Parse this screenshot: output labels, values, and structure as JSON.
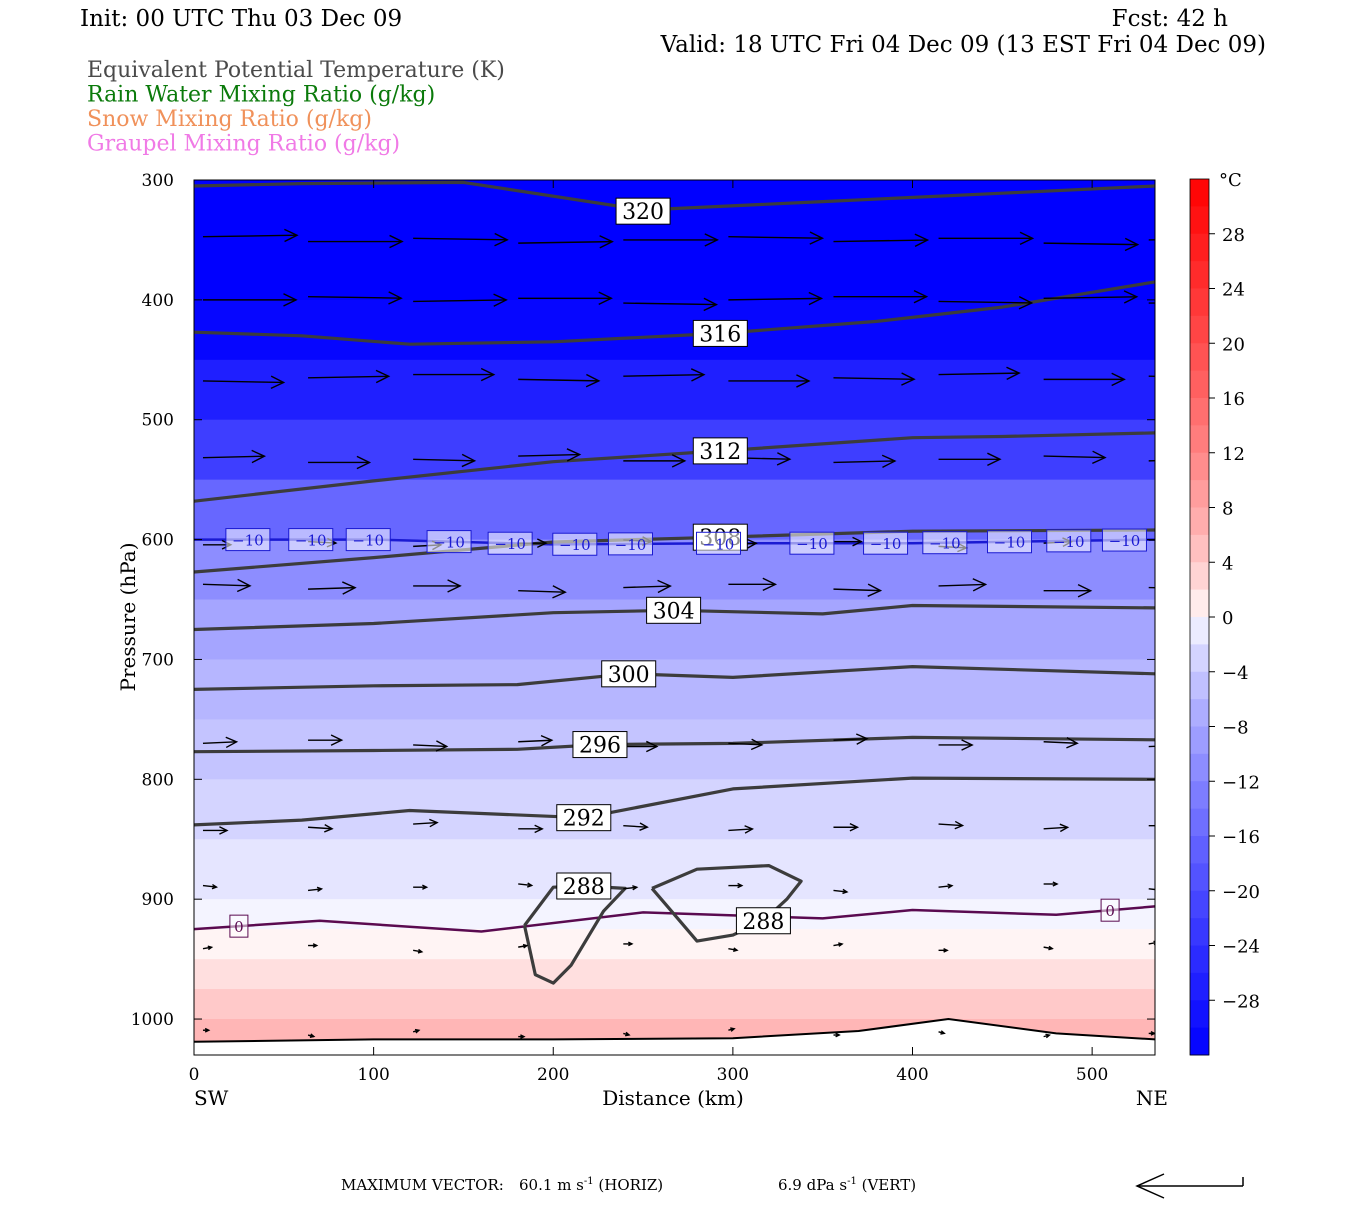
{
  "header": {
    "init": "Init: 00 UTC Thu 03 Dec 09",
    "fcst": "Fcst:   42 h",
    "valid": "Valid: 18 UTC Fri 04 Dec 09 (13 EST Fri 04 Dec 09)"
  },
  "legend": [
    {
      "label": "Equivalent Potential Temperature (K)",
      "color": "#4a4a4a"
    },
    {
      "label": "Rain Water Mixing Ratio (g/kg)",
      "color": "#0a7a0a"
    },
    {
      "label": "Snow Mixing Ratio (g/kg)",
      "color": "#f0915a"
    },
    {
      "label": "Graupel Mixing Ratio (g/kg)",
      "color": "#f07ae6"
    }
  ],
  "footer": {
    "prefix": "MAXIMUM VECTOR:",
    "horiz_value": "60.1",
    "horiz_unit": "m s",
    "horiz_exp": "-1",
    "horiz_tag": "(HORIZ)",
    "vert_value": "6.9",
    "vert_unit": "dPa s",
    "vert_exp": "-1",
    "vert_tag": "(VERT)"
  },
  "chart_data": {
    "type": "contour cross-section",
    "xlabel": "Distance (km)",
    "ylabel": "Pressure (hPa)",
    "x_left_label": "SW",
    "x_right_label": "NE",
    "xlim": [
      0,
      535
    ],
    "ylim": [
      1030,
      300
    ],
    "x_ticks": [
      0,
      100,
      200,
      300,
      400,
      500
    ],
    "y_ticks": [
      300,
      400,
      500,
      600,
      700,
      800,
      900,
      1000
    ],
    "colorbar": {
      "unit": "°C",
      "tick_labels": [
        "28",
        "24",
        "20",
        "16",
        "12",
        "8",
        "4",
        "0",
        "−4",
        "−8",
        "−12",
        "−16",
        "−20",
        "−24",
        "−28"
      ],
      "range": [
        -32,
        32
      ],
      "step": 2,
      "cold_color": "#0000ff",
      "neutral_color": "#ffffff",
      "warm_color": "#ff0000"
    },
    "temperature_bands": [
      {
        "p": 300,
        "t": -32
      },
      {
        "p": 350,
        "t": -32
      },
      {
        "p": 400,
        "t": -31
      },
      {
        "p": 450,
        "t": -27
      },
      {
        "p": 500,
        "t": -22
      },
      {
        "p": 550,
        "t": -16
      },
      {
        "p": 600,
        "t": -11
      },
      {
        "p": 650,
        "t": -8
      },
      {
        "p": 700,
        "t": -6
      },
      {
        "p": 750,
        "t": -4.5
      },
      {
        "p": 800,
        "t": -3
      },
      {
        "p": 850,
        "t": -1.5
      },
      {
        "p": 900,
        "t": -0.5
      },
      {
        "p": 925,
        "t": 0.5
      },
      {
        "p": 950,
        "t": 2
      },
      {
        "p": 975,
        "t": 4
      },
      {
        "p": 1000,
        "t": 6
      },
      {
        "p": 1030,
        "t": 8
      }
    ],
    "theta_e_contours": [
      {
        "label": "320",
        "label_at": [
          250,
          326
        ],
        "points": [
          [
            0,
            305
          ],
          [
            60,
            303
          ],
          [
            150,
            302
          ],
          [
            250,
            325
          ],
          [
            350,
            318
          ],
          [
            450,
            311
          ],
          [
            535,
            305
          ]
        ]
      },
      {
        "label": "316",
        "label_at": [
          293,
          428
        ],
        "points": [
          [
            0,
            427
          ],
          [
            60,
            430
          ],
          [
            120,
            437
          ],
          [
            200,
            435
          ],
          [
            293,
            428
          ],
          [
            380,
            418
          ],
          [
            450,
            406
          ],
          [
            535,
            385
          ]
        ]
      },
      {
        "label": "312",
        "label_at": [
          293,
          526
        ],
        "points": [
          [
            0,
            568
          ],
          [
            100,
            551
          ],
          [
            200,
            535
          ],
          [
            293,
            526
          ],
          [
            400,
            515
          ],
          [
            450,
            514
          ],
          [
            535,
            511
          ]
        ]
      },
      {
        "label": "308",
        "label_at": [
          293,
          598
        ],
        "points": [
          [
            0,
            627
          ],
          [
            100,
            615
          ],
          [
            200,
            602
          ],
          [
            293,
            598
          ],
          [
            400,
            593
          ],
          [
            535,
            592
          ]
        ]
      },
      {
        "label": "304",
        "label_at": [
          267,
          659
        ],
        "points": [
          [
            0,
            675
          ],
          [
            100,
            670
          ],
          [
            200,
            661
          ],
          [
            267,
            659
          ],
          [
            350,
            662
          ],
          [
            400,
            655
          ],
          [
            535,
            657
          ]
        ]
      },
      {
        "label": "300",
        "label_at": [
          242,
          712
        ],
        "points": [
          [
            0,
            725
          ],
          [
            100,
            722
          ],
          [
            180,
            721
          ],
          [
            242,
            712
          ],
          [
            300,
            715
          ],
          [
            400,
            706
          ],
          [
            535,
            712
          ]
        ]
      },
      {
        "label": "296",
        "label_at": [
          226,
          771
        ],
        "points": [
          [
            0,
            777
          ],
          [
            100,
            776
          ],
          [
            180,
            775
          ],
          [
            226,
            771
          ],
          [
            300,
            770
          ],
          [
            400,
            765
          ],
          [
            535,
            767
          ]
        ]
      },
      {
        "label": "292",
        "label_at": [
          217,
          832
        ],
        "points": [
          [
            0,
            838
          ],
          [
            60,
            834
          ],
          [
            120,
            826
          ],
          [
            217,
            832
          ],
          [
            300,
            808
          ],
          [
            400,
            799
          ],
          [
            535,
            800
          ]
        ]
      },
      {
        "label": "288",
        "label_at": [
          217,
          889
        ],
        "points": [
          [
            184,
            922
          ],
          [
            200,
            890
          ],
          [
            217,
            889
          ],
          [
            240,
            891
          ],
          [
            228,
            910
          ],
          [
            210,
            955
          ],
          [
            200,
            970
          ],
          [
            190,
            963
          ],
          [
            184,
            922
          ]
        ]
      },
      {
        "label": "288",
        "label_at": [
          317,
          918
        ],
        "points": [
          [
            255,
            891
          ],
          [
            280,
            875
          ],
          [
            320,
            872
          ],
          [
            338,
            885
          ],
          [
            330,
            900
          ],
          [
            317,
            918
          ],
          [
            300,
            930
          ],
          [
            280,
            935
          ],
          [
            263,
            905
          ],
          [
            255,
            891
          ]
        ]
      }
    ],
    "temperature_contours": [
      {
        "value": "−10",
        "color": "#1a1ad2",
        "labels_x": [
          30,
          65,
          97,
          142,
          176,
          212,
          243,
          292,
          344,
          385,
          418,
          454,
          487,
          518
        ],
        "points": [
          [
            0,
            600
          ],
          [
            100,
            600
          ],
          [
            200,
            604
          ],
          [
            300,
            603
          ],
          [
            400,
            603
          ],
          [
            535,
            600
          ]
        ]
      },
      {
        "value": "0",
        "color": "#5a0a50",
        "labels_x": [
          25,
          510
        ],
        "points": [
          [
            0,
            925
          ],
          [
            70,
            918
          ],
          [
            160,
            927
          ],
          [
            250,
            911
          ],
          [
            350,
            916
          ],
          [
            400,
            909
          ],
          [
            480,
            913
          ],
          [
            535,
            906
          ]
        ]
      }
    ],
    "surface": [
      [
        0,
        1019
      ],
      [
        100,
        1017
      ],
      [
        200,
        1017
      ],
      [
        300,
        1016
      ],
      [
        370,
        1010
      ],
      [
        420,
        1000
      ],
      [
        480,
        1012
      ],
      [
        535,
        1017
      ]
    ],
    "wind_rows": [
      {
        "p": 350,
        "len": 0.98,
        "slope": 0
      },
      {
        "p": 400,
        "len": 0.97,
        "slope": 0
      },
      {
        "p": 465,
        "len": 0.84,
        "slope": 0
      },
      {
        "p": 533,
        "len": 0.64,
        "slope": 0
      },
      {
        "p": 603,
        "len": 0.29,
        "slope": 0
      },
      {
        "p": 640,
        "len": 0.49,
        "slope": 0
      },
      {
        "p": 770,
        "len": 0.35,
        "slope": 0
      },
      {
        "p": 840,
        "len": 0.25,
        "slope": 0
      },
      {
        "p": 890,
        "len": 0.14,
        "slope": 0
      },
      {
        "p": 940,
        "len": 0.09,
        "slope": 0
      },
      {
        "p": 1012,
        "len": 0.06,
        "slope": 0
      }
    ]
  }
}
